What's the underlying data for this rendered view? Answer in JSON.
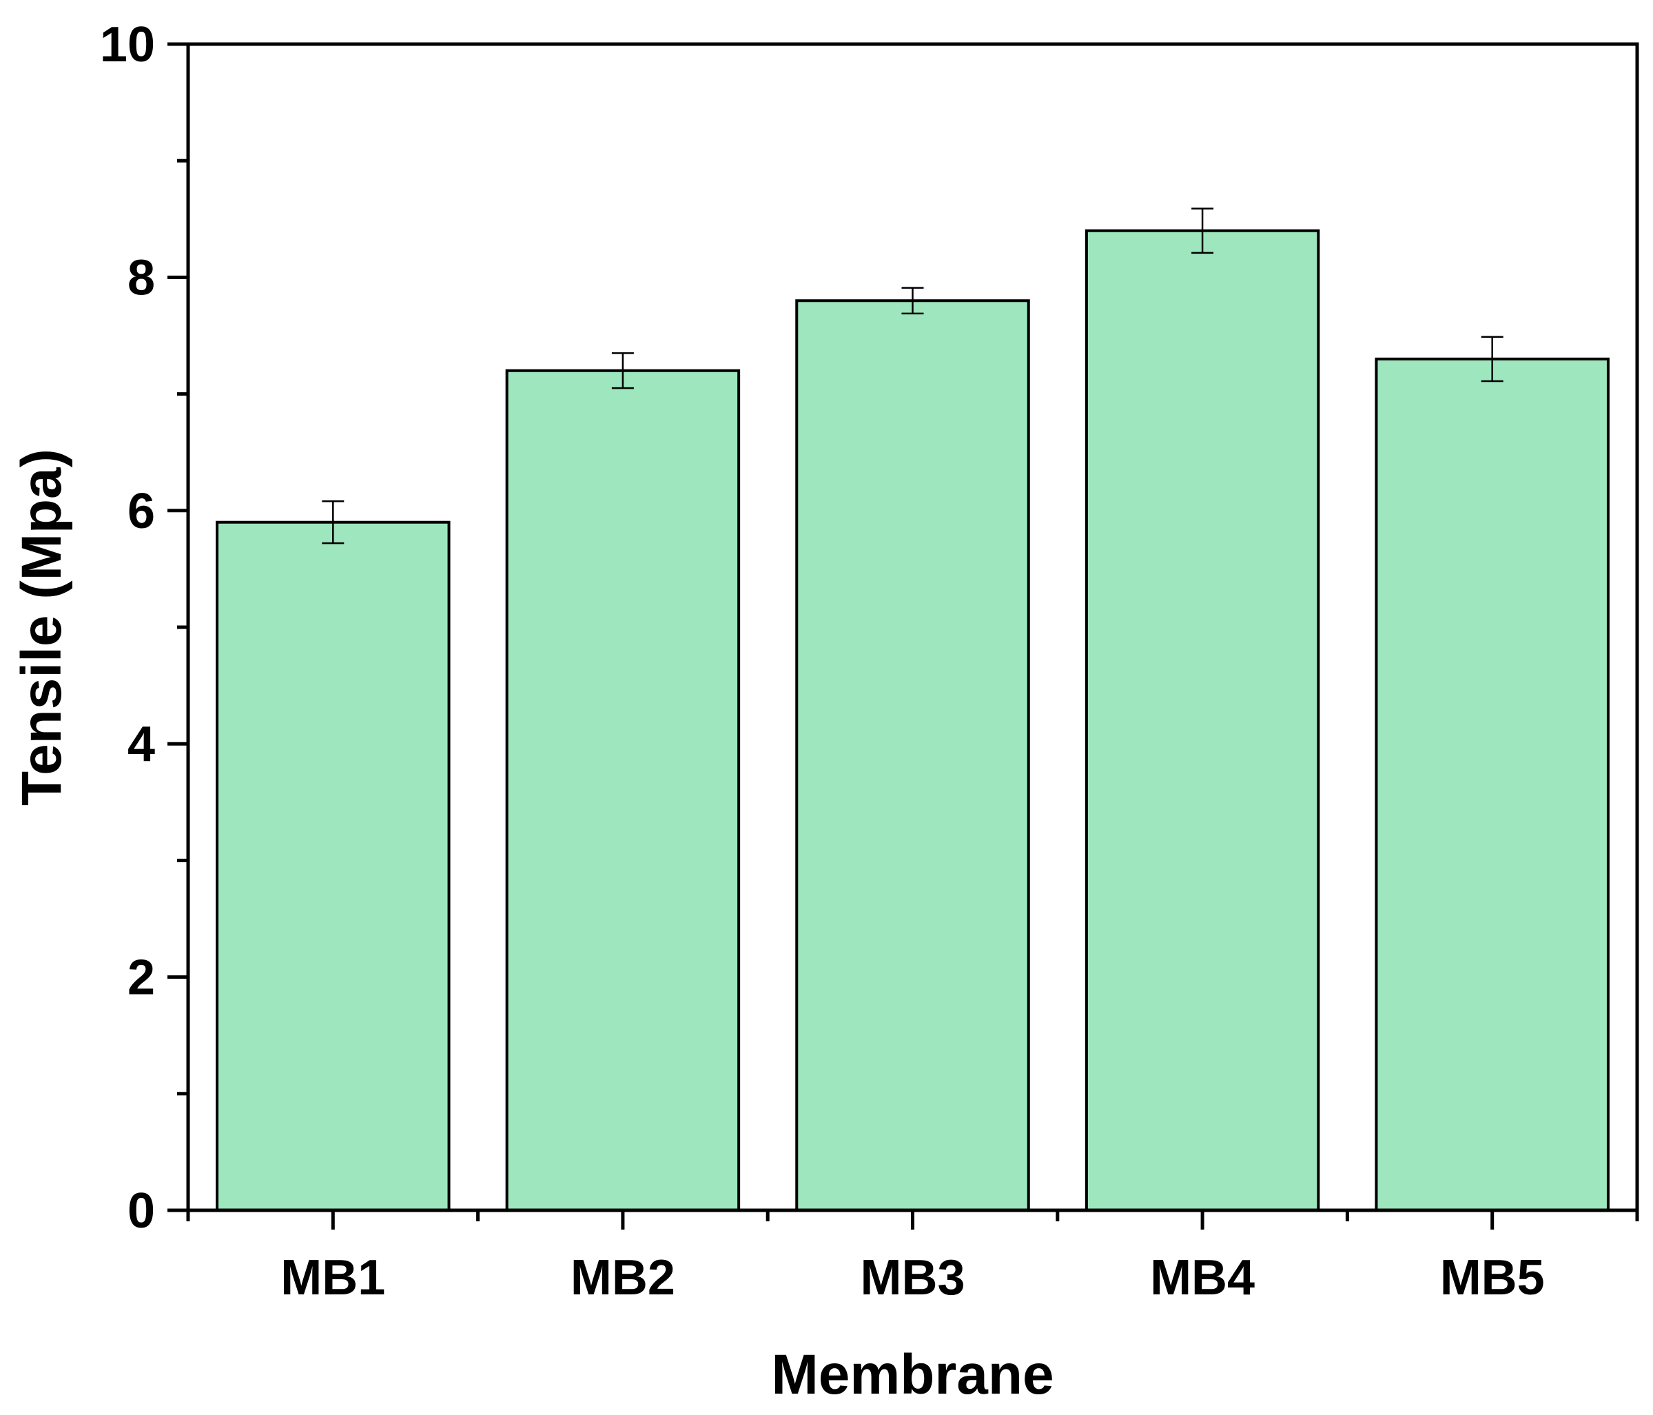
{
  "chart_data": {
    "type": "bar",
    "title": "",
    "xlabel": "Membrane",
    "ylabel": "Tensile (Mpa)",
    "categories": [
      "MB1",
      "MB2",
      "MB3",
      "MB4",
      "MB5"
    ],
    "values": [
      5.9,
      7.2,
      7.8,
      8.4,
      7.3
    ],
    "errors": [
      0.18,
      0.15,
      0.11,
      0.19,
      0.19
    ],
    "ylim": [
      0,
      10
    ],
    "yticks": [
      0,
      2,
      4,
      6,
      8,
      10
    ],
    "yticklabels": [
      "0",
      "2",
      "4",
      "6",
      "8",
      "10"
    ],
    "grid": false,
    "bar_color": "#9ee6bd",
    "edge_color": "#000000"
  }
}
